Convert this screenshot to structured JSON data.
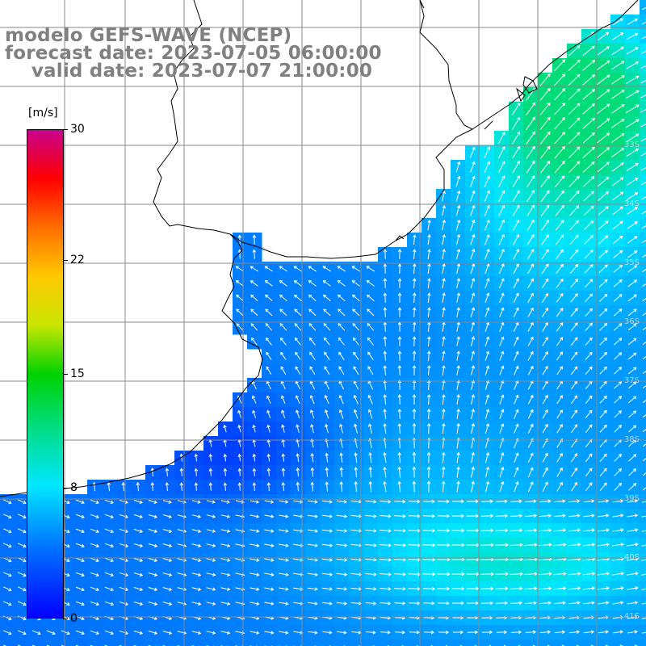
{
  "title": {
    "line1": "modelo GEFS-WAVE (NCEP)",
    "line2": "forecast date: 2023-07-05 06:00:00",
    "line3": "    valid date: 2023-07-07 21:00:00"
  },
  "colorbar": {
    "unit": "[m/s]",
    "min": 0,
    "max": 30,
    "ticks": [
      {
        "value": 30,
        "label": "30"
      },
      {
        "value": 22,
        "label": "22"
      },
      {
        "value": 15,
        "label": "15"
      },
      {
        "value": 8,
        "label": "8"
      },
      {
        "value": 0,
        "label": "0"
      }
    ]
  },
  "field": {
    "variable": "wind speed and direction",
    "units": "m/s",
    "typical_range_ms": [
      3,
      14
    ]
  },
  "lat_labels": [
    "33S",
    "34S",
    "35S",
    "36S",
    "37S",
    "38S",
    "39S",
    "40S",
    "41S"
  ],
  "colors": {
    "land": "#ffffff",
    "grid": "#808080",
    "coastline": "#000000",
    "title": "#808080",
    "vectors": "#ffffff"
  }
}
